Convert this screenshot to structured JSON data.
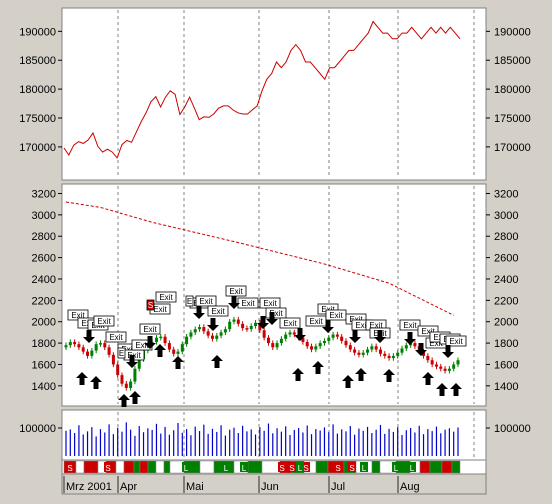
{
  "chart_data": [
    {
      "type": "line",
      "panel": "equity",
      "ylim": [
        166000,
        193000
      ],
      "yticks": [
        "170000",
        "175000",
        "180000",
        "185000",
        "190000"
      ],
      "color": "#cc0000",
      "values": [
        169800,
        168600,
        170300,
        170900,
        170600,
        171200,
        172400,
        170100,
        169100,
        169600,
        169100,
        168100,
        170400,
        171100,
        170800,
        172600,
        174400,
        175900,
        177800,
        178700,
        176900,
        178600,
        179700,
        179100,
        175600,
        176900,
        178600,
        176700,
        174700,
        175200,
        175100,
        175700,
        176700,
        177100,
        177100,
        176400,
        175900,
        175700,
        175700,
        176400,
        177100,
        179700,
        181700,
        182700,
        184700,
        183700,
        184700,
        186700,
        187700,
        186700,
        184700,
        184700,
        183700,
        182700,
        181700,
        183700,
        183700,
        184700,
        185700,
        186700,
        186700,
        187700,
        188700,
        189700,
        191700,
        190700,
        189700,
        189700,
        188700,
        188700,
        189700,
        189700,
        190700,
        189700,
        188700,
        189700,
        190700,
        189700,
        190700,
        189700,
        190700,
        189700,
        188700
      ]
    },
    {
      "type": "candlestick",
      "panel": "price",
      "ylim": [
        1230,
        3270
      ],
      "yticks": [
        "1400",
        "1600",
        "1800",
        "2000",
        "2200",
        "2400",
        "2600",
        "2800",
        "3000",
        "3200"
      ],
      "up_color": "#008000",
      "down_color": "#cc0000",
      "closes": [
        1780,
        1810,
        1790,
        1760,
        1720,
        1680,
        1730,
        1790,
        1800,
        1760,
        1690,
        1600,
        1500,
        1420,
        1380,
        1440,
        1560,
        1650,
        1730,
        1790,
        1810,
        1850,
        1860,
        1800,
        1740,
        1700,
        1720,
        1790,
        1860,
        1900,
        1930,
        1950,
        1910,
        1870,
        1840,
        1870,
        1900,
        1930,
        2000,
        2020,
        1980,
        1940,
        1930,
        1960,
        1990,
        1920,
        1850,
        1800,
        1760,
        1800,
        1840,
        1880,
        1900,
        1880,
        1850,
        1810,
        1770,
        1740,
        1770,
        1800,
        1820,
        1850,
        1880,
        1860,
        1820,
        1780,
        1740,
        1710,
        1690,
        1710,
        1740,
        1770,
        1740,
        1700,
        1680,
        1660,
        1680,
        1710,
        1750,
        1780,
        1800,
        1770,
        1720,
        1680,
        1640,
        1600,
        1580,
        1560,
        1540,
        1560,
        1600,
        1640
      ],
      "moving_average": {
        "color": "#cc0000",
        "style": "dashed",
        "points": [
          [
            0,
            3120
          ],
          [
            8,
            3070
          ],
          [
            20,
            2930
          ],
          [
            40,
            2740
          ],
          [
            60,
            2540
          ],
          [
            75,
            2360
          ],
          [
            90,
            2060
          ]
        ]
      }
    },
    {
      "type": "bar",
      "panel": "volume",
      "ylim": [
        0,
        150000
      ],
      "yticks": [
        "100000"
      ],
      "color": "#0000cc",
      "values": [
        90000,
        95000,
        82000,
        110000,
        77000,
        88000,
        103000,
        70000,
        96000,
        84000,
        113000,
        78000,
        101000,
        87000,
        120000,
        94000,
        72000,
        107000,
        85000,
        99000,
        93000,
        115000,
        80000,
        104000,
        76000,
        92000,
        118000,
        83000,
        96000,
        74000,
        105000,
        89000,
        112000,
        79000,
        97000,
        86000,
        110000,
        73000,
        94000,
        101000,
        82000,
        108000,
        88000,
        95000,
        77000,
        103000,
        90000,
        116000,
        81000,
        99000,
        87000,
        106000,
        75000,
        93000,
        100000,
        84000,
        109000,
        78000,
        96000,
        91000,
        102000,
        85000,
        113000,
        80000,
        95000,
        88000,
        107000,
        76000,
        98000,
        90000,
        104000,
        82000,
        94000,
        111000,
        79000,
        97000,
        86000,
        103000,
        75000,
        92000,
        100000,
        84000,
        108000,
        78000,
        96000,
        89000,
        105000,
        81000,
        94000,
        99000,
        87000,
        102000
      ]
    }
  ],
  "signal_panel": {
    "markers": [
      {
        "label": "Exit",
        "kind": "exit"
      },
      {
        "label": "E",
        "kind": "exit-short"
      },
      {
        "label": "S",
        "kind": "sell-entry"
      }
    ],
    "strip_labels": [
      "S",
      "S",
      "S",
      "S",
      "L",
      "L",
      "L",
      "S",
      "L",
      "L",
      "L",
      "L",
      "S",
      "S"
    ]
  },
  "x_axis": {
    "labels": [
      "Mrz 2001",
      "Apr",
      "Mai",
      "Jun",
      "Jul",
      "Aug"
    ]
  },
  "colors": {
    "background": "#d4d0c8",
    "panel": "#ffffff",
    "grid": "#808080",
    "long": "#008000",
    "short": "#cc0000"
  }
}
